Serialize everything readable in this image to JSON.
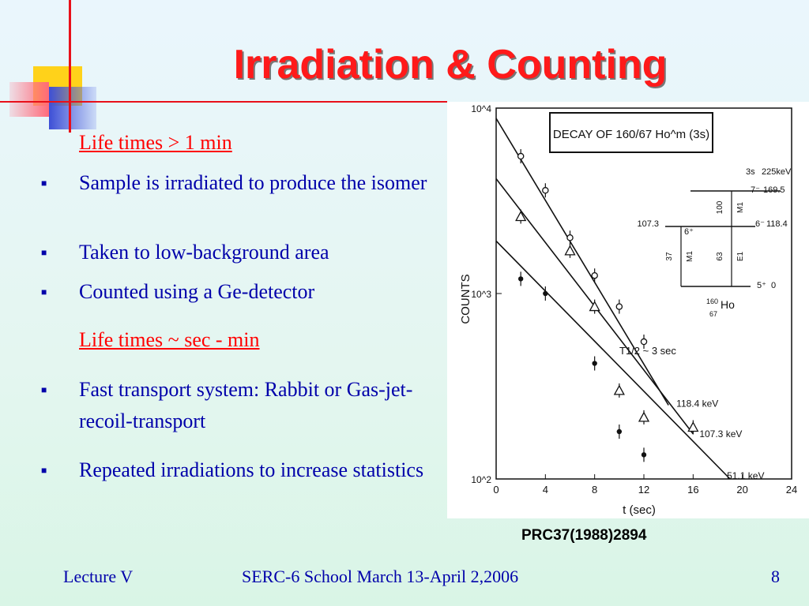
{
  "slide": {
    "title": "Irradiation & Counting",
    "colors": {
      "title": "#ff1a1a",
      "body": "#0000aa",
      "subheading": "#ff0000",
      "accent_line": "#e8101a"
    }
  },
  "content": {
    "sub1": "Life times > 1 min",
    "bullets1": [
      {
        "mark": "■",
        "text": "Sample is irradiated to produce the isomer"
      },
      {
        "mark": "■",
        "text": "Taken to low-background area"
      },
      {
        "mark": "■",
        "text": "Counted using a Ge-detector"
      }
    ],
    "sub2": "Life times ~ sec - min",
    "bullets2": [
      {
        "mark": "■",
        "text": "Fast transport system: Rabbit or Gas-jet-recoil-transport"
      },
      {
        "mark": "■",
        "text": "Repeated irradiations to increase statistics"
      }
    ]
  },
  "figure": {
    "reference": "PRC37(1988)2894"
  },
  "chart_data": {
    "type": "scatter",
    "title": "DECAY OF 160/67 Ho^m (3s)",
    "xlabel": "t (sec)",
    "ylabel": "COUNTS",
    "xlim": [
      0,
      24
    ],
    "ylim": [
      100,
      10000
    ],
    "yscale": "log",
    "x_ticks": [
      "0",
      "4",
      "8",
      "12",
      "16",
      "20",
      "24"
    ],
    "y_ticks": [
      "10^2",
      "10^3",
      "10^4"
    ],
    "fit_label": "T1/2 ~ 3 sec",
    "series": [
      {
        "name": "118.4 keV",
        "marker": "circle",
        "x": [
          2,
          4,
          6,
          8,
          10,
          12
        ],
        "y": [
          5500,
          3600,
          2000,
          1250,
          850,
          550
        ],
        "line_end": [
          14,
          250
        ]
      },
      {
        "name": "107.3 keV",
        "marker": "triangle",
        "x": [
          2,
          6,
          8,
          10,
          12,
          16
        ],
        "y": [
          2600,
          1700,
          850,
          300,
          215,
          190
        ],
        "line_end": [
          16,
          175
        ]
      },
      {
        "name": "51.1 keV",
        "marker": "dot",
        "x": [
          2,
          4,
          8,
          10,
          12
        ],
        "y": [
          1200,
          1000,
          420,
          180,
          135
        ],
        "line_end": [
          19,
          100
        ]
      }
    ],
    "level_scheme": {
      "levels": [
        {
          "spin": "3s",
          "energy": "225keV"
        },
        {
          "spin": "7⁻",
          "energy": "169.5"
        },
        {
          "spin": "6⁻",
          "energy": "118.4"
        },
        {
          "spin": "6⁺",
          "energy": "107.3"
        },
        {
          "spin": "5⁺",
          "energy": "0"
        }
      ],
      "transitions": [
        {
          "energy": "100",
          "mult": "M1"
        },
        {
          "energy": "37",
          "mult": "M1"
        },
        {
          "energy": "63",
          "mult": "E1"
        }
      ],
      "nucleus_A": "160",
      "nucleus_Z": "67",
      "nucleus": "Ho"
    }
  },
  "footer": {
    "left": "Lecture V",
    "center": "SERC-6 School March 13-April 2,2006",
    "page": "8"
  }
}
